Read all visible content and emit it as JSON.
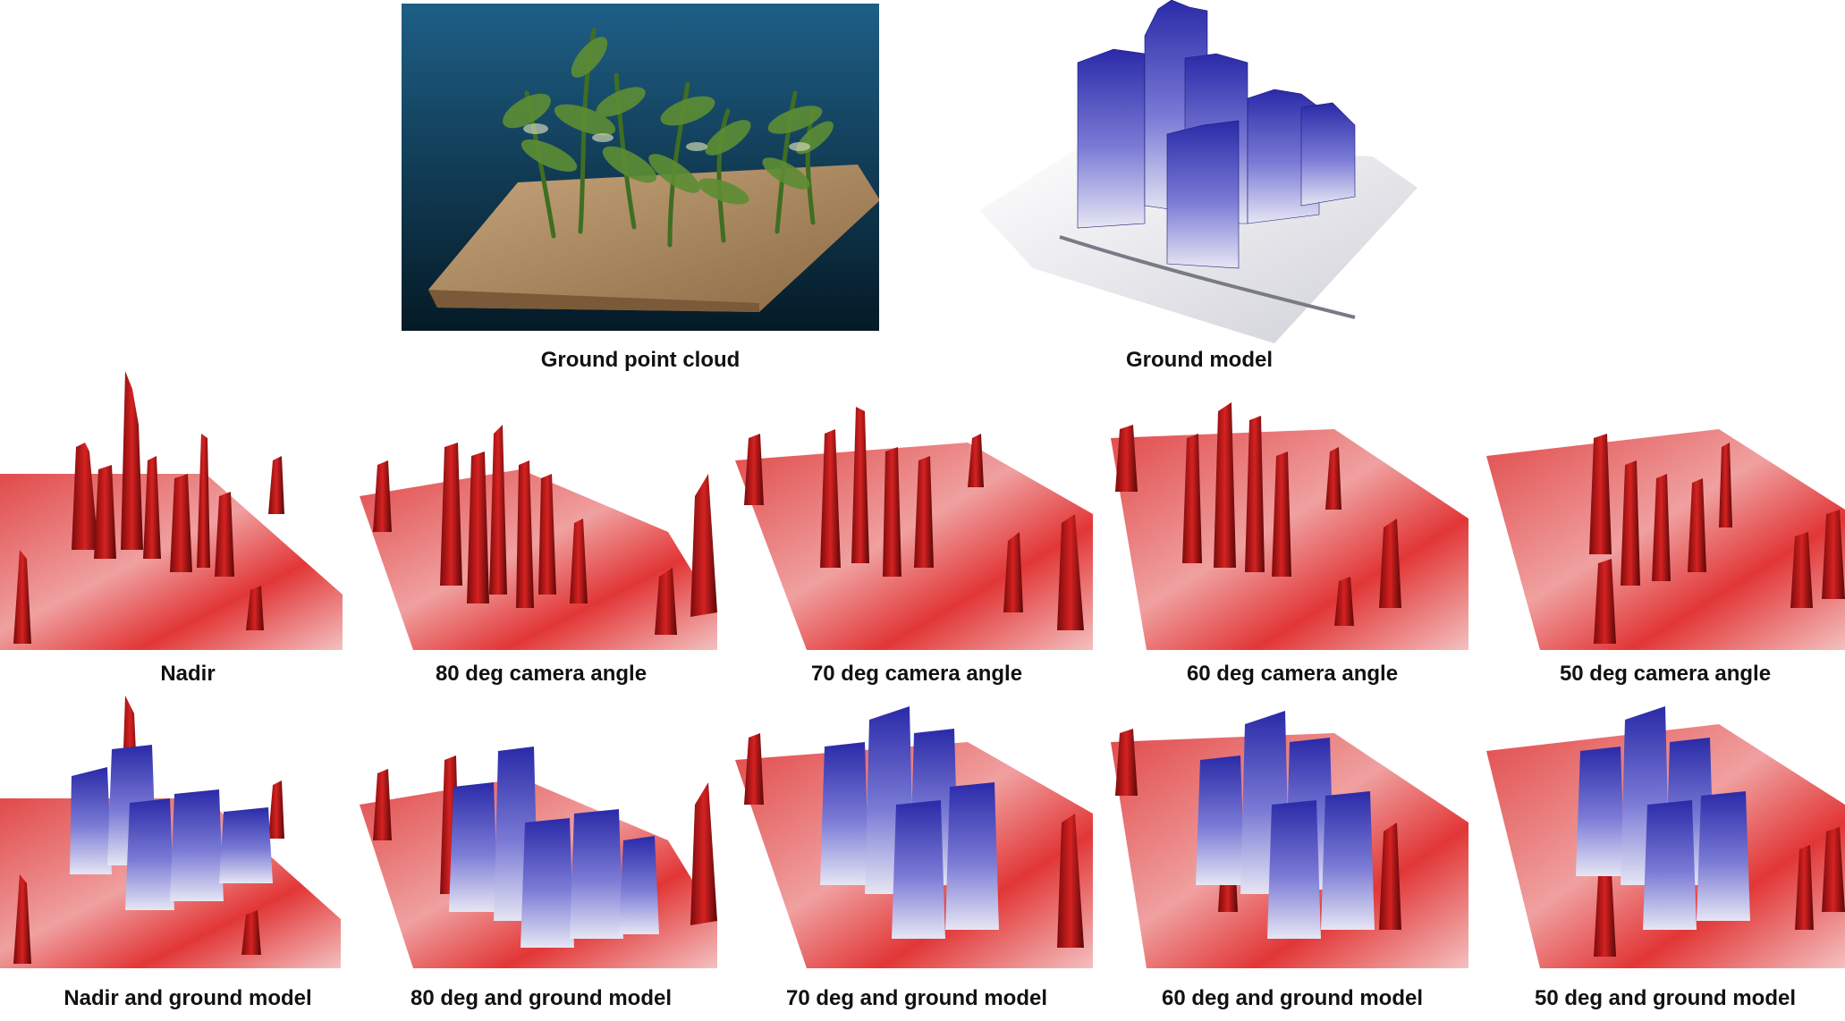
{
  "figure": {
    "top_row": [
      {
        "caption": "Ground point cloud",
        "render": "point-cloud"
      },
      {
        "caption": "Ground model",
        "render": "ground-model"
      }
    ],
    "middle_row": [
      {
        "caption": "Nadir",
        "render": "red-surface"
      },
      {
        "caption": "80 deg camera angle",
        "render": "red-surface"
      },
      {
        "caption": "70 deg camera angle",
        "render": "red-surface"
      },
      {
        "caption": "60 deg camera angle",
        "render": "red-surface"
      },
      {
        "caption": "50 deg camera angle",
        "render": "red-surface"
      }
    ],
    "bottom_row": [
      {
        "caption": "Nadir and ground model",
        "render": "red-blue-overlay"
      },
      {
        "caption": "80 deg and ground model",
        "render": "red-blue-overlay"
      },
      {
        "caption": "70 deg and ground model",
        "render": "red-blue-overlay"
      },
      {
        "caption": "60 deg and ground model",
        "render": "red-blue-overlay"
      },
      {
        "caption": "50 deg and ground model",
        "render": "red-blue-overlay"
      }
    ]
  },
  "colors": {
    "surface_red": "#d42020",
    "surface_dark_red": "#8a0c0c",
    "model_blue": "#3a3ab8",
    "point_cloud_bg": "#0d3f5a",
    "soil": "#b08a5e",
    "plant_green": "#4e7d2a"
  }
}
